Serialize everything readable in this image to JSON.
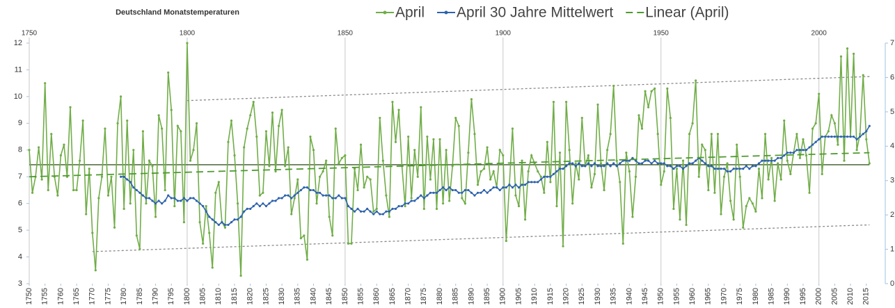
{
  "chart_data": {
    "type": "line",
    "title": "Deutschland Monatstemperaturen",
    "x": [
      1750,
      1751,
      1752,
      1753,
      1754,
      1755,
      1756,
      1757,
      1758,
      1759,
      1760,
      1761,
      1762,
      1763,
      1764,
      1765,
      1766,
      1767,
      1768,
      1769,
      1770,
      1771,
      1772,
      1773,
      1774,
      1775,
      1776,
      1777,
      1778,
      1779,
      1780,
      1781,
      1782,
      1783,
      1784,
      1785,
      1786,
      1787,
      1788,
      1789,
      1790,
      1791,
      1792,
      1793,
      1794,
      1795,
      1796,
      1797,
      1798,
      1799,
      1800,
      1801,
      1802,
      1803,
      1804,
      1805,
      1806,
      1807,
      1808,
      1809,
      1810,
      1811,
      1812,
      1813,
      1814,
      1815,
      1816,
      1817,
      1818,
      1819,
      1820,
      1821,
      1822,
      1823,
      1824,
      1825,
      1826,
      1827,
      1828,
      1829,
      1830,
      1831,
      1832,
      1833,
      1834,
      1835,
      1836,
      1837,
      1838,
      1839,
      1840,
      1841,
      1842,
      1843,
      1844,
      1845,
      1846,
      1847,
      1848,
      1849,
      1850,
      1851,
      1852,
      1853,
      1854,
      1855,
      1856,
      1857,
      1858,
      1859,
      1860,
      1861,
      1862,
      1863,
      1864,
      1865,
      1866,
      1867,
      1868,
      1869,
      1870,
      1871,
      1872,
      1873,
      1874,
      1875,
      1876,
      1877,
      1878,
      1879,
      1880,
      1881,
      1882,
      1883,
      1884,
      1885,
      1886,
      1887,
      1888,
      1889,
      1890,
      1891,
      1892,
      1893,
      1894,
      1895,
      1896,
      1897,
      1898,
      1899,
      1900,
      1901,
      1902,
      1903,
      1904,
      1905,
      1906,
      1907,
      1908,
      1909,
      1910,
      1911,
      1912,
      1913,
      1914,
      1915,
      1916,
      1917,
      1918,
      1919,
      1920,
      1921,
      1922,
      1923,
      1924,
      1925,
      1926,
      1927,
      1928,
      1929,
      1930,
      1931,
      1932,
      1933,
      1934,
      1935,
      1936,
      1937,
      1938,
      1939,
      1940,
      1941,
      1942,
      1943,
      1944,
      1945,
      1946,
      1947,
      1948,
      1949,
      1950,
      1951,
      1952,
      1953,
      1954,
      1955,
      1956,
      1957,
      1958,
      1959,
      1960,
      1961,
      1962,
      1963,
      1964,
      1965,
      1966,
      1967,
      1968,
      1969,
      1970,
      1971,
      1972,
      1973,
      1974,
      1975,
      1976,
      1977,
      1978,
      1979,
      1980,
      1981,
      1982,
      1983,
      1984,
      1985,
      1986,
      1987,
      1988,
      1989,
      1990,
      1991,
      1992,
      1993,
      1994,
      1995,
      1996,
      1997,
      1998,
      1999,
      2000,
      2001,
      2002,
      2003,
      2004,
      2005,
      2006,
      2007,
      2008,
      2009,
      2010,
      2011,
      2012,
      2013,
      2014,
      2015,
      2016
    ],
    "series": [
      {
        "name": "April",
        "color": "#70ad47",
        "marker": true,
        "values": [
          8.0,
          6.4,
          7.0,
          8.1,
          6.9,
          10.5,
          6.5,
          8.6,
          7.0,
          6.3,
          7.8,
          8.2,
          7.0,
          9.6,
          6.5,
          6.5,
          7.6,
          9.1,
          5.6,
          7.3,
          4.9,
          3.5,
          6.2,
          7.0,
          8.8,
          6.3,
          7.0,
          5.1,
          9.0,
          10.0,
          5.8,
          9.1,
          6.0,
          8.0,
          4.8,
          4.3,
          8.7,
          6.0,
          7.6,
          7.4,
          5.5,
          9.3,
          8.8,
          6.5,
          10.9,
          9.5,
          5.9,
          8.9,
          8.7,
          5.3,
          12.0,
          7.6,
          8.0,
          9.0,
          5.3,
          4.5,
          5.9,
          4.9,
          3.6,
          6.4,
          6.8,
          5.3,
          5.1,
          8.3,
          9.1,
          7.8,
          6.0,
          3.3,
          8.1,
          8.8,
          9.3,
          9.8,
          8.5,
          6.3,
          6.4,
          8.7,
          7.4,
          9.4,
          7.2,
          8.9,
          9.5,
          7.4,
          8.1,
          5.6,
          6.2,
          6.9,
          4.7,
          4.8,
          3.9,
          8.5,
          8.0,
          6.0,
          7.0,
          7.2,
          7.6,
          5.5,
          4.8,
          8.8,
          7.5,
          7.7,
          7.8,
          4.5,
          4.5,
          7.3,
          6.5,
          8.2,
          6.6,
          7.0,
          6.9,
          5.7,
          5.8,
          9.2,
          7.6,
          6.3,
          5.5,
          9.8,
          8.3,
          9.5,
          7.4,
          5.9,
          8.5,
          6.2,
          8.0,
          7.0,
          9.6,
          5.8,
          8.5,
          6.9,
          8.4,
          5.8,
          8.4,
          6.0,
          8.0,
          6.1,
          7.4,
          9.2,
          8.9,
          6.2,
          6.0,
          7.9,
          9.9,
          8.6,
          6.7,
          7.2,
          7.3,
          8.1,
          6.9,
          7.2,
          6.6,
          8.0,
          7.8,
          4.6,
          6.7,
          8.8,
          6.3,
          5.9,
          7.6,
          5.4,
          7.2,
          7.8,
          7.5,
          7.2,
          7.0,
          6.4,
          8.3,
          6.8,
          9.8,
          5.9,
          7.9,
          4.4,
          9.8,
          8.0,
          6.0,
          7.5,
          6.9,
          9.2,
          7.4,
          7.8,
          6.6,
          7.1,
          9.7,
          7.5,
          6.5,
          8.0,
          8.6,
          10.4,
          7.6,
          6.8,
          4.5,
          7.9,
          7.2,
          5.5,
          7.0,
          9.3,
          8.8,
          10.2,
          9.6,
          10.2,
          10.3,
          8.6,
          6.7,
          7.2,
          10.3,
          9.2,
          5.8,
          7.3,
          5.4,
          7.6,
          5.2,
          8.6,
          9.0,
          10.6,
          7.0,
          8.2,
          8.0,
          6.5,
          8.6,
          6.4,
          8.6,
          5.6,
          7.0,
          7.5,
          6.1,
          5.4,
          8.2,
          7.0,
          5.1,
          5.9,
          6.2,
          6.0,
          5.7,
          7.3,
          6.2,
          8.6,
          6.9,
          7.7,
          6.1,
          7.5,
          6.9,
          9.1,
          7.6,
          7.1,
          7.9,
          8.6,
          7.7,
          8.4,
          7.8,
          6.4,
          8.8,
          9.0,
          10.1,
          7.1,
          8.5,
          8.7,
          9.3,
          9.0,
          8.2,
          11.5,
          7.6,
          11.8,
          8.5,
          11.6,
          8.0,
          8.6,
          10.8,
          8.4,
          7.5
        ]
      },
      {
        "name": "April 30 Jahre Mittelwert",
        "color": "#2e62ad",
        "marker": true,
        "values": [
          null,
          null,
          null,
          null,
          null,
          null,
          null,
          null,
          null,
          null,
          null,
          null,
          null,
          null,
          null,
          null,
          null,
          null,
          null,
          null,
          null,
          null,
          null,
          null,
          null,
          null,
          null,
          null,
          null,
          7.0,
          7.0,
          6.9,
          6.8,
          6.6,
          6.5,
          6.4,
          6.3,
          6.2,
          6.2,
          6.1,
          6.0,
          6.1,
          6.0,
          6.1,
          6.3,
          6.2,
          6.2,
          6.1,
          6.1,
          6.2,
          6.1,
          6.2,
          6.2,
          6.1,
          6.0,
          5.9,
          5.7,
          5.5,
          5.4,
          5.3,
          5.2,
          5.3,
          5.2,
          5.2,
          5.3,
          5.4,
          5.4,
          5.5,
          5.7,
          5.8,
          5.8,
          5.9,
          6.0,
          5.9,
          6.0,
          5.9,
          6.0,
          6.1,
          6.1,
          6.2,
          6.2,
          6.3,
          6.3,
          6.2,
          6.3,
          6.4,
          6.5,
          6.6,
          6.6,
          6.5,
          6.5,
          6.4,
          6.4,
          6.3,
          6.3,
          6.3,
          6.2,
          6.2,
          6.3,
          6.2,
          6.2,
          5.9,
          5.8,
          5.7,
          5.8,
          5.7,
          5.7,
          5.8,
          5.7,
          5.6,
          5.7,
          5.6,
          5.6,
          5.7,
          5.7,
          5.8,
          5.8,
          5.9,
          5.9,
          6.0,
          6.0,
          6.1,
          6.1,
          6.2,
          6.3,
          6.2,
          6.3,
          6.4,
          6.4,
          6.4,
          6.5,
          6.6,
          6.5,
          6.6,
          6.5,
          6.5,
          6.4,
          6.4,
          6.5,
          6.5,
          6.4,
          6.3,
          6.4,
          6.4,
          6.5,
          6.4,
          6.5,
          6.6,
          6.6,
          6.5,
          6.6,
          6.6,
          6.7,
          6.6,
          6.7,
          6.6,
          6.7,
          6.7,
          6.8,
          6.8,
          6.8,
          6.8,
          6.9,
          7.0,
          7.0,
          7.0,
          7.1,
          7.2,
          7.3,
          7.3,
          7.4,
          7.5,
          7.5,
          7.4,
          7.5,
          7.4,
          7.4,
          7.5,
          7.4,
          7.5,
          7.4,
          7.4,
          7.4,
          7.5,
          7.4,
          7.5,
          7.4,
          7.5,
          7.6,
          7.6,
          7.6,
          7.7,
          7.6,
          7.5,
          7.5,
          7.6,
          7.6,
          7.5,
          7.6,
          7.5,
          7.5,
          7.5,
          7.4,
          7.4,
          7.3,
          7.4,
          7.4,
          7.3,
          7.4,
          7.5,
          7.5,
          7.6,
          7.7,
          7.6,
          7.5,
          7.4,
          7.4,
          7.3,
          7.3,
          7.3,
          7.3,
          7.2,
          7.2,
          7.3,
          7.3,
          7.3,
          7.3,
          7.4,
          7.3,
          7.4,
          7.4,
          7.5,
          7.6,
          7.6,
          7.6,
          7.6,
          7.6,
          7.7,
          7.7,
          7.8,
          7.9,
          7.9,
          7.9,
          8.0,
          8.0,
          8.0,
          8.0,
          8.1,
          8.2,
          8.3,
          8.4,
          8.5,
          8.5,
          8.5,
          8.5,
          8.5,
          8.5,
          8.5,
          8.5,
          8.5,
          8.5,
          8.5,
          8.4,
          8.5,
          8.6,
          8.7,
          8.9
        ]
      },
      {
        "name": "Linear (April)",
        "color": "#4e9a2f",
        "dash": "10 6",
        "x": [
          1750,
          2016
        ],
        "values": [
          7.0,
          7.9
        ]
      }
    ],
    "reference_lines": [
      {
        "color": "#375623",
        "x": [
          1750,
          2016
        ],
        "values": [
          7.45,
          7.45
        ]
      },
      {
        "color": "#888888",
        "dash": "3 3",
        "x": [
          1800,
          2016
        ],
        "values": [
          9.85,
          10.75
        ]
      },
      {
        "color": "#888888",
        "dash": "3 3",
        "x": [
          1770,
          2016
        ],
        "values": [
          4.2,
          5.2
        ]
      }
    ],
    "xlim": [
      1750,
      2021
    ],
    "xticks": [
      1750,
      1755,
      1760,
      1765,
      1770,
      1775,
      1780,
      1785,
      1790,
      1795,
      1800,
      1805,
      1810,
      1815,
      1820,
      1825,
      1830,
      1835,
      1840,
      1845,
      1850,
      1855,
      1860,
      1865,
      1870,
      1875,
      1880,
      1885,
      1890,
      1895,
      1900,
      1905,
      1910,
      1915,
      1920,
      1925,
      1930,
      1935,
      1940,
      1945,
      1950,
      1955,
      1960,
      1965,
      1970,
      1975,
      1980,
      1985,
      1990,
      1995,
      2000,
      2005,
      2010,
      2015
    ],
    "x2ticks": [
      1750,
      1800,
      1850,
      1900,
      1950,
      2000
    ],
    "ylim": [
      3,
      12
    ],
    "yticks": [
      3,
      4,
      5,
      6,
      7,
      8,
      9,
      10,
      11,
      12
    ],
    "y2lim": [
      0,
      7
    ],
    "y2ticks": [
      0,
      1,
      2,
      3,
      4,
      5,
      6,
      7
    ],
    "grid": "x2"
  }
}
